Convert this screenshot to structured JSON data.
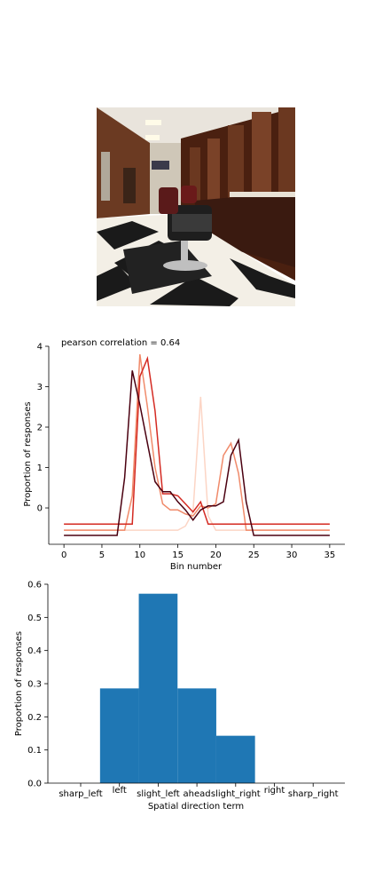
{
  "image": {
    "alt": "barber shop interior photo"
  },
  "chart_data": [
    {
      "type": "line",
      "annotation": "pearson correlation = 0.64",
      "xlabel": "Bin number",
      "ylabel": "Proportion of responses",
      "xlim": [
        -2,
        37
      ],
      "ylim": [
        -0.9,
        4.0
      ],
      "xticks": [
        "0",
        "5",
        "10",
        "15",
        "20",
        "25",
        "30",
        "35"
      ],
      "yticks": [
        "0",
        "1",
        "2",
        "3",
        "4"
      ],
      "grid": false,
      "series": [
        {
          "color": "#fcd5c5",
          "x": [
            0,
            15,
            16,
            17,
            18,
            19,
            20,
            35
          ],
          "values": [
            -0.55,
            -0.55,
            -0.45,
            -0.1,
            2.75,
            -0.2,
            -0.55,
            -0.55
          ]
        },
        {
          "color": "#f08a6a",
          "x": [
            0,
            8,
            9,
            10,
            11,
            12,
            13,
            14,
            15,
            16,
            17,
            18,
            19,
            20,
            21,
            22,
            23,
            24,
            25,
            35
          ],
          "values": [
            -0.55,
            -0.55,
            0.3,
            3.8,
            2.5,
            1.0,
            0.1,
            -0.05,
            -0.05,
            -0.15,
            -0.2,
            0.05,
            0.0,
            0.1,
            1.3,
            1.6,
            0.85,
            -0.55,
            -0.55,
            -0.55
          ]
        },
        {
          "color": "#d42a22",
          "x": [
            0,
            9,
            10,
            11,
            12,
            13,
            14,
            15,
            16,
            17,
            18,
            19,
            35
          ],
          "values": [
            -0.4,
            -0.4,
            3.25,
            3.7,
            2.4,
            0.35,
            0.35,
            0.3,
            0.1,
            -0.1,
            0.15,
            -0.4,
            -0.4
          ]
        },
        {
          "color": "#4a0010",
          "x": [
            0,
            7,
            8,
            9,
            10,
            11,
            12,
            13,
            14,
            15,
            16,
            17,
            18,
            19,
            20,
            21,
            22,
            23,
            24,
            25,
            35
          ],
          "values": [
            -0.68,
            -0.68,
            0.75,
            3.4,
            2.55,
            1.6,
            0.65,
            0.4,
            0.4,
            0.15,
            -0.05,
            -0.3,
            -0.05,
            0.05,
            0.05,
            0.15,
            1.3,
            1.68,
            0.15,
            -0.68,
            -0.68
          ]
        }
      ]
    },
    {
      "type": "bar",
      "xlabel": "Spatial direction term",
      "ylabel": "Proportion of responses",
      "ylim": [
        0,
        0.6
      ],
      "yticks": [
        "0.0",
        "0.1",
        "0.2",
        "0.3",
        "0.4",
        "0.5",
        "0.6"
      ],
      "categories": [
        "sharp_left",
        "left",
        "slight_left",
        "ahead",
        "slight_right",
        "right",
        "sharp_right"
      ],
      "values": [
        0,
        0.2857,
        0.5714,
        0.2857,
        0.1429,
        0,
        0
      ],
      "color": "#1f77b4",
      "grid": false
    }
  ]
}
